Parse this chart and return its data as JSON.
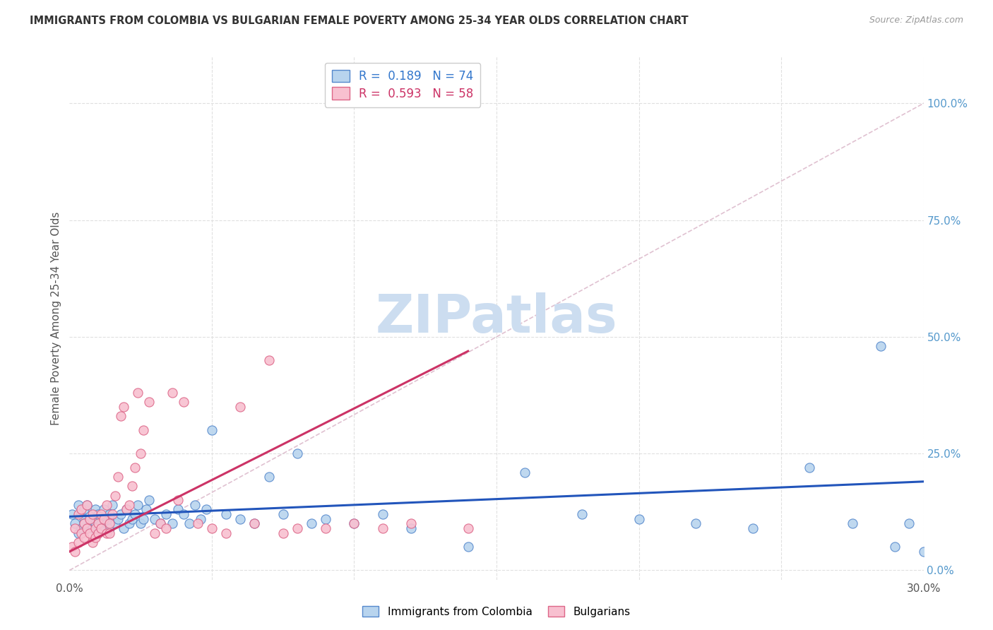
{
  "title": "IMMIGRANTS FROM COLOMBIA VS BULGARIAN FEMALE POVERTY AMONG 25-34 YEAR OLDS CORRELATION CHART",
  "source": "Source: ZipAtlas.com",
  "ylabel": "Female Poverty Among 25-34 Year Olds",
  "xlim": [
    0.0,
    0.3
  ],
  "ylim": [
    -0.02,
    1.1
  ],
  "xtick_positions": [
    0.0,
    0.05,
    0.1,
    0.15,
    0.2,
    0.25,
    0.3
  ],
  "xtick_labels": [
    "0.0%",
    "",
    "",
    "",
    "",
    "",
    "30.0%"
  ],
  "ytick_positions": [
    0.0,
    0.25,
    0.5,
    0.75,
    1.0
  ],
  "ytick_labels_right": [
    "0.0%",
    "25.0%",
    "50.0%",
    "75.0%",
    "100.0%"
  ],
  "series1_name": "Immigrants from Colombia",
  "series1_fill_color": "#b8d4ee",
  "series1_edge_color": "#5588cc",
  "series1_R": "0.189",
  "series1_N": "74",
  "series1_trend_color": "#2255bb",
  "series2_name": "Bulgarians",
  "series2_fill_color": "#f8c0d0",
  "series2_edge_color": "#dd6688",
  "series2_R": "0.593",
  "series2_N": "58",
  "series2_trend_color": "#cc3366",
  "legend_R_color": "#3377cc",
  "legend_N_color": "#3377cc",
  "legend_R2_color": "#cc3366",
  "legend_N2_color": "#cc3366",
  "watermark_text": "ZIPatlas",
  "watermark_color": "#ccddf0",
  "background_color": "#ffffff",
  "grid_color": "#e0e0e0",
  "diag_line_color": "#ddbbcc",
  "colombia_x": [
    0.001,
    0.002,
    0.003,
    0.003,
    0.004,
    0.004,
    0.005,
    0.005,
    0.005,
    0.006,
    0.006,
    0.007,
    0.007,
    0.008,
    0.008,
    0.009,
    0.009,
    0.01,
    0.01,
    0.011,
    0.011,
    0.012,
    0.013,
    0.013,
    0.014,
    0.014,
    0.015,
    0.016,
    0.017,
    0.018,
    0.019,
    0.02,
    0.021,
    0.022,
    0.023,
    0.024,
    0.025,
    0.026,
    0.027,
    0.028,
    0.03,
    0.032,
    0.034,
    0.036,
    0.038,
    0.04,
    0.042,
    0.044,
    0.046,
    0.048,
    0.05,
    0.055,
    0.06,
    0.065,
    0.07,
    0.075,
    0.08,
    0.085,
    0.09,
    0.1,
    0.11,
    0.12,
    0.14,
    0.16,
    0.18,
    0.2,
    0.22,
    0.24,
    0.26,
    0.275,
    0.285,
    0.29,
    0.295,
    0.3
  ],
  "colombia_y": [
    0.12,
    0.1,
    0.14,
    0.08,
    0.12,
    0.09,
    0.11,
    0.13,
    0.1,
    0.09,
    0.14,
    0.11,
    0.1,
    0.12,
    0.09,
    0.13,
    0.1,
    0.11,
    0.12,
    0.1,
    0.09,
    0.13,
    0.11,
    0.1,
    0.12,
    0.09,
    0.14,
    0.1,
    0.11,
    0.12,
    0.09,
    0.13,
    0.1,
    0.11,
    0.12,
    0.14,
    0.1,
    0.11,
    0.13,
    0.15,
    0.11,
    0.1,
    0.12,
    0.1,
    0.13,
    0.12,
    0.1,
    0.14,
    0.11,
    0.13,
    0.3,
    0.12,
    0.11,
    0.1,
    0.2,
    0.12,
    0.25,
    0.1,
    0.11,
    0.1,
    0.12,
    0.09,
    0.05,
    0.21,
    0.12,
    0.11,
    0.1,
    0.09,
    0.22,
    0.1,
    0.48,
    0.05,
    0.1,
    0.04
  ],
  "bulgarian_x": [
    0.001,
    0.002,
    0.002,
    0.003,
    0.003,
    0.004,
    0.004,
    0.005,
    0.005,
    0.006,
    0.006,
    0.007,
    0.007,
    0.008,
    0.008,
    0.009,
    0.009,
    0.01,
    0.01,
    0.011,
    0.011,
    0.012,
    0.013,
    0.013,
    0.014,
    0.014,
    0.015,
    0.016,
    0.017,
    0.018,
    0.019,
    0.02,
    0.021,
    0.022,
    0.023,
    0.024,
    0.025,
    0.026,
    0.028,
    0.03,
    0.032,
    0.034,
    0.036,
    0.038,
    0.04,
    0.045,
    0.05,
    0.055,
    0.06,
    0.065,
    0.07,
    0.075,
    0.08,
    0.09,
    0.1,
    0.11,
    0.12,
    0.14
  ],
  "bulgarian_y": [
    0.05,
    0.04,
    0.09,
    0.06,
    0.12,
    0.08,
    0.13,
    0.07,
    0.1,
    0.09,
    0.14,
    0.08,
    0.11,
    0.06,
    0.12,
    0.09,
    0.07,
    0.1,
    0.08,
    0.12,
    0.09,
    0.11,
    0.08,
    0.14,
    0.1,
    0.08,
    0.12,
    0.16,
    0.2,
    0.33,
    0.35,
    0.13,
    0.14,
    0.18,
    0.22,
    0.38,
    0.25,
    0.3,
    0.36,
    0.08,
    0.1,
    0.09,
    0.38,
    0.15,
    0.36,
    0.1,
    0.09,
    0.08,
    0.35,
    0.1,
    0.45,
    0.08,
    0.09,
    0.09,
    0.1,
    0.09,
    0.1,
    0.09
  ]
}
